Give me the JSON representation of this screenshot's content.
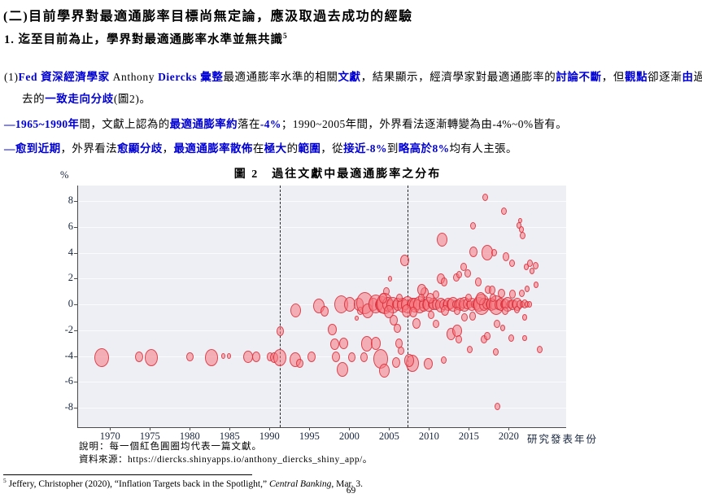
{
  "heading1": "(二)目前學界對最適通膨率目標尚無定論，應汲取過去成功的經驗",
  "heading2_segments": [
    {
      "t": "1. 迄至目前為止，學界對最適通膨率水準並無共識",
      "c": "k"
    },
    {
      "t": "5",
      "c": "s"
    }
  ],
  "para1_segments": [
    {
      "t": "(1)",
      "c": "k"
    },
    {
      "t": "Fed 資深經濟學家",
      "c": "b"
    },
    {
      "t": " Anthony ",
      "c": "k"
    },
    {
      "t": "Diercks 彙整",
      "c": "b"
    },
    {
      "t": "最適通膨率水準的相關",
      "c": "k"
    },
    {
      "t": "文獻",
      "c": "b"
    },
    {
      "t": "，結果顯示，經濟學家對最適通膨率的",
      "c": "k"
    },
    {
      "t": "討論不斷",
      "c": "b"
    },
    {
      "t": "，但",
      "c": "k"
    },
    {
      "t": "觀點",
      "c": "b"
    },
    {
      "t": "卻逐漸",
      "c": "k"
    },
    {
      "t": "由",
      "c": "b"
    },
    {
      "t": "過去的",
      "c": "k"
    },
    {
      "t": "一致走向分歧",
      "c": "b"
    },
    {
      "t": "(圖2)。",
      "c": "k"
    }
  ],
  "bullet1_segments": [
    {
      "t": "—",
      "c": "b"
    },
    {
      "t": "1965~1990年",
      "c": "b"
    },
    {
      "t": "間，文獻上認為的",
      "c": "k"
    },
    {
      "t": "最適通膨率約",
      "c": "b"
    },
    {
      "t": "落在",
      "c": "k"
    },
    {
      "t": "-4%",
      "c": "b"
    },
    {
      "t": "；1990~2005年間，外界看法逐漸轉變為由-4%~0%皆有。",
      "c": "k"
    }
  ],
  "bullet2_segments": [
    {
      "t": "—",
      "c": "b"
    },
    {
      "t": "愈到近期",
      "c": "b"
    },
    {
      "t": "，外界看法",
      "c": "k"
    },
    {
      "t": "愈顯分歧",
      "c": "b"
    },
    {
      "t": "，",
      "c": "k"
    },
    {
      "t": "最適通膨率散佈",
      "c": "b"
    },
    {
      "t": "在",
      "c": "k"
    },
    {
      "t": "極大",
      "c": "b"
    },
    {
      "t": "的",
      "c": "k"
    },
    {
      "t": "範圍",
      "c": "b"
    },
    {
      "t": "，從",
      "c": "k"
    },
    {
      "t": "接近-8%",
      "c": "b"
    },
    {
      "t": "到",
      "c": "k"
    },
    {
      "t": "略高於8%",
      "c": "b"
    },
    {
      "t": "均有人主張。",
      "c": "k"
    }
  ],
  "chart_data": {
    "type": "scatter",
    "title": "圖 2　過往文獻中最適通膨率之分布",
    "ylabel": "%",
    "xlabel": "研究發表年份",
    "note": "說明：每一個紅色圓圈均代表一篇文獻。",
    "source": "資料來源：https://diercks.shinyapps.io/anthony_diercks_shiny_app/。",
    "xlim": [
      1966,
      2027.2
    ],
    "ylim": [
      -9.5,
      9.2
    ],
    "yticks": [
      8,
      6,
      4,
      2,
      0,
      -2,
      -4,
      -6,
      -8
    ],
    "xticks": [
      1970,
      1975,
      1980,
      1985,
      1990,
      1995,
      2000,
      2005,
      2010,
      2015,
      2020
    ],
    "vlines": [
      1991.3,
      2007.3
    ],
    "grid": true,
    "legend": false,
    "bubble_fill": "rgba(245,120,128,0.55)",
    "bubble_border": "rgba(216,40,52,0.8)",
    "bubbles": [
      [
        1969.0,
        -4.1,
        9
      ],
      [
        1973.7,
        -4.05,
        5
      ],
      [
        1975.2,
        -4.1,
        8
      ],
      [
        1980.0,
        -4.05,
        4.5
      ],
      [
        1982.7,
        -4.1,
        8
      ],
      [
        1984.2,
        -4.0,
        2.5
      ],
      [
        1984.9,
        -4.0,
        2.5
      ],
      [
        1987.3,
        -4.05,
        6
      ],
      [
        1988.3,
        -4.05,
        5
      ],
      [
        1990.1,
        -4.05,
        4
      ],
      [
        1990.6,
        -4.1,
        5
      ],
      [
        1991.3,
        -4.1,
        8
      ],
      [
        1991.3,
        -2.05,
        4.5
      ],
      [
        1993.2,
        -4.3,
        7
      ],
      [
        1993.8,
        -4.55,
        4.5
      ],
      [
        1993.3,
        -0.45,
        6.5
      ],
      [
        1995.3,
        -4.05,
        5
      ],
      [
        1996.2,
        -0.1,
        7
      ],
      [
        1996.9,
        -0.55,
        5
      ],
      [
        1997.9,
        -1.95,
        5.5
      ],
      [
        1998.2,
        -3.1,
        5.5
      ],
      [
        1998.3,
        -4.05,
        5
      ],
      [
        1999.0,
        0.0,
        8.5
      ],
      [
        1999.3,
        -3.0,
        5.5
      ],
      [
        1999.1,
        -5.05,
        7
      ],
      [
        2000.1,
        0.0,
        7
      ],
      [
        2000.3,
        -4.1,
        4.5
      ],
      [
        2000.9,
        -1.05,
        2.5
      ],
      [
        2001.2,
        0.0,
        6
      ],
      [
        2001.4,
        -0.5,
        4
      ],
      [
        2001.9,
        -4.1,
        4.5
      ],
      [
        2002.0,
        0.1,
        10.5
      ],
      [
        2002.3,
        -0.5,
        7
      ],
      [
        2002.2,
        -3.05,
        7
      ],
      [
        2003.3,
        -3.0,
        6
      ],
      [
        2003.9,
        -4.2,
        9
      ],
      [
        2004.4,
        -5.1,
        6.5
      ],
      [
        2005.6,
        -1.2,
        5
      ],
      [
        2006.0,
        -1.85,
        4.5
      ],
      [
        2006.2,
        -3.0,
        4.5
      ],
      [
        2006.5,
        -3.6,
        4
      ],
      [
        2005.9,
        -4.5,
        5
      ],
      [
        2007.9,
        -4.55,
        8
      ],
      [
        2007.5,
        -4.35,
        6
      ],
      [
        2009.9,
        -4.6,
        5.5
      ],
      [
        2011.8,
        -4.3,
        3.5
      ],
      [
        2008.4,
        -1.5,
        5
      ],
      [
        2010.9,
        -1.5,
        4
      ],
      [
        2012.8,
        -2.3,
        5.5
      ],
      [
        2013.5,
        -2.05,
        6
      ],
      [
        2013.7,
        -2.7,
        4
      ],
      [
        2015.1,
        -3.5,
        3.5
      ],
      [
        2016.9,
        -2.7,
        4
      ],
      [
        2017.3,
        -2.45,
        4
      ],
      [
        2018.4,
        -3.65,
        3.5
      ],
      [
        2019.2,
        -1.8,
        3
      ],
      [
        2018.5,
        -1.5,
        4
      ],
      [
        2020.3,
        -2.6,
        3.5
      ],
      [
        2022.0,
        -2.6,
        3
      ],
      [
        2023.9,
        -3.5,
        3.5
      ],
      [
        2022.0,
        -1.0,
        3
      ],
      [
        2018.6,
        -7.9,
        3.5
      ],
      [
        2014.4,
        -1.0,
        4
      ],
      [
        2015.5,
        -0.9,
        4
      ],
      [
        2010.3,
        -0.8,
        4
      ],
      [
        2007.0,
        3.4,
        5.5
      ],
      [
        2011.6,
        5.0,
        6.5
      ],
      [
        2017.1,
        8.3,
        3.5
      ],
      [
        2019.4,
        7.2,
        3.5
      ],
      [
        2021.3,
        6.1,
        3
      ],
      [
        2021.6,
        5.8,
        3
      ],
      [
        2021.7,
        5.3,
        3.5
      ],
      [
        2021.4,
        6.5,
        2.5
      ],
      [
        2015.5,
        6.1,
        3.5
      ],
      [
        2015.6,
        4.1,
        5
      ],
      [
        2017.3,
        4.0,
        7
      ],
      [
        2018.2,
        4.0,
        3.5
      ],
      [
        2019.7,
        3.7,
        4
      ],
      [
        2020.4,
        3.2,
        3.5
      ],
      [
        2022.7,
        3.2,
        3.5
      ],
      [
        2023.4,
        3.0,
        3.5
      ],
      [
        2022.2,
        2.9,
        3
      ],
      [
        2022.9,
        2.6,
        3
      ],
      [
        2016.2,
        1.75,
        4
      ],
      [
        2017.4,
        1.15,
        4
      ],
      [
        2017.9,
        1.1,
        4
      ],
      [
        2019.1,
        0.85,
        4.5
      ],
      [
        2020.5,
        0.8,
        4
      ],
      [
        2021.6,
        0.85,
        3.5
      ],
      [
        2022.3,
        1.2,
        3
      ],
      [
        2023.4,
        1.5,
        3
      ],
      [
        2013.4,
        2.1,
        4
      ],
      [
        2011.5,
        2.0,
        5
      ],
      [
        2011.9,
        1.75,
        4
      ],
      [
        2013.8,
        2.3,
        3.5
      ],
      [
        2014.3,
        2.9,
        4
      ],
      [
        2014.9,
        2.4,
        4
      ],
      [
        2009.5,
        0.95,
        5
      ],
      [
        2009.1,
        1.15,
        5.5
      ],
      [
        2010.9,
        0.75,
        4
      ],
      [
        2004.7,
        1.0,
        4
      ],
      [
        2005.1,
        2.0,
        2.5
      ],
      [
        2003.0,
        0,
        6
      ],
      [
        2003.3,
        0.05,
        9
      ],
      [
        2003.7,
        0,
        5
      ],
      [
        2004.1,
        0,
        8
      ],
      [
        2004.5,
        0.05,
        10
      ],
      [
        2004.9,
        0,
        7
      ],
      [
        2005.2,
        0,
        5
      ],
      [
        2005.5,
        -0.05,
        8
      ],
      [
        2005.8,
        0,
        4
      ],
      [
        2006.1,
        0,
        6
      ],
      [
        2006.4,
        0,
        4
      ],
      [
        2006.7,
        -0.05,
        7
      ],
      [
        2007.0,
        0,
        5
      ],
      [
        2007.3,
        0,
        8
      ],
      [
        2007.6,
        0,
        4
      ],
      [
        2007.9,
        0.05,
        6
      ],
      [
        2008.2,
        -0.05,
        7
      ],
      [
        2008.5,
        0,
        5
      ],
      [
        2008.8,
        0,
        8
      ],
      [
        2009.1,
        0,
        4
      ],
      [
        2009.4,
        -0.05,
        6
      ],
      [
        2009.7,
        0,
        5
      ],
      [
        2010.0,
        0,
        7
      ],
      [
        2010.3,
        0,
        4
      ],
      [
        2010.6,
        0.05,
        6
      ],
      [
        2010.9,
        0,
        5
      ],
      [
        2011.2,
        0,
        4
      ],
      [
        2011.5,
        -0.05,
        7
      ],
      [
        2011.8,
        0,
        5
      ],
      [
        2012.1,
        0,
        4
      ],
      [
        2012.4,
        0,
        6
      ],
      [
        2012.7,
        0.05,
        5
      ],
      [
        2013.0,
        0,
        7
      ],
      [
        2013.3,
        0,
        4
      ],
      [
        2013.6,
        -0.05,
        5
      ],
      [
        2013.9,
        0,
        6
      ],
      [
        2014.2,
        0,
        4
      ],
      [
        2014.5,
        0,
        7
      ],
      [
        2014.8,
        0.05,
        5
      ],
      [
        2015.1,
        0,
        4
      ],
      [
        2015.4,
        0,
        6
      ],
      [
        2015.7,
        0,
        4
      ],
      [
        2016.0,
        -0.05,
        5
      ],
      [
        2016.3,
        0,
        7
      ],
      [
        2016.6,
        0,
        10
      ],
      [
        2016.9,
        0,
        6
      ],
      [
        2017.2,
        0.05,
        5
      ],
      [
        2017.5,
        0,
        4
      ],
      [
        2017.8,
        0,
        6
      ],
      [
        2018.1,
        0,
        5
      ],
      [
        2018.4,
        -0.05,
        9
      ],
      [
        2018.7,
        0,
        5
      ],
      [
        2019.0,
        0,
        6
      ],
      [
        2019.3,
        0,
        4
      ],
      [
        2019.6,
        0.05,
        5
      ],
      [
        2019.9,
        0,
        7
      ],
      [
        2020.2,
        0,
        4
      ],
      [
        2020.5,
        0,
        5
      ],
      [
        2020.8,
        0,
        4
      ],
      [
        2021.1,
        0,
        6
      ],
      [
        2021.4,
        0,
        4
      ],
      [
        2021.7,
        0,
        3
      ],
      [
        2022.0,
        0.05,
        4
      ],
      [
        2022.3,
        0,
        3
      ],
      [
        2022.6,
        0,
        3
      ],
      [
        2004.3,
        0.5,
        5
      ],
      [
        2007.2,
        -0.5,
        6
      ],
      [
        2005.0,
        -0.55,
        6
      ],
      [
        2008.0,
        -0.6,
        5
      ],
      [
        2010.2,
        0.5,
        5
      ],
      [
        2013.5,
        -0.5,
        4
      ],
      [
        2016.5,
        0.45,
        6
      ],
      [
        2009.0,
        0.5,
        4
      ],
      [
        2012.0,
        -0.45,
        5
      ],
      [
        2015.0,
        0.5,
        4
      ],
      [
        2018.0,
        0.5,
        4
      ],
      [
        2019.5,
        -0.5,
        4
      ],
      [
        2006.3,
        0.5,
        4
      ],
      [
        2021.0,
        -0.4,
        3.5
      ]
    ]
  },
  "footnote_segments": [
    {
      "t": "5",
      "c": "s"
    },
    {
      "t": " Jeffery, Christopher (2020), “Inflation Targets back in the Spotlight,” ",
      "c": "k"
    },
    {
      "t": "Central Banking",
      "c": "i"
    },
    {
      "t": ", Mar. 3.",
      "c": "k"
    }
  ],
  "page_number": "69"
}
